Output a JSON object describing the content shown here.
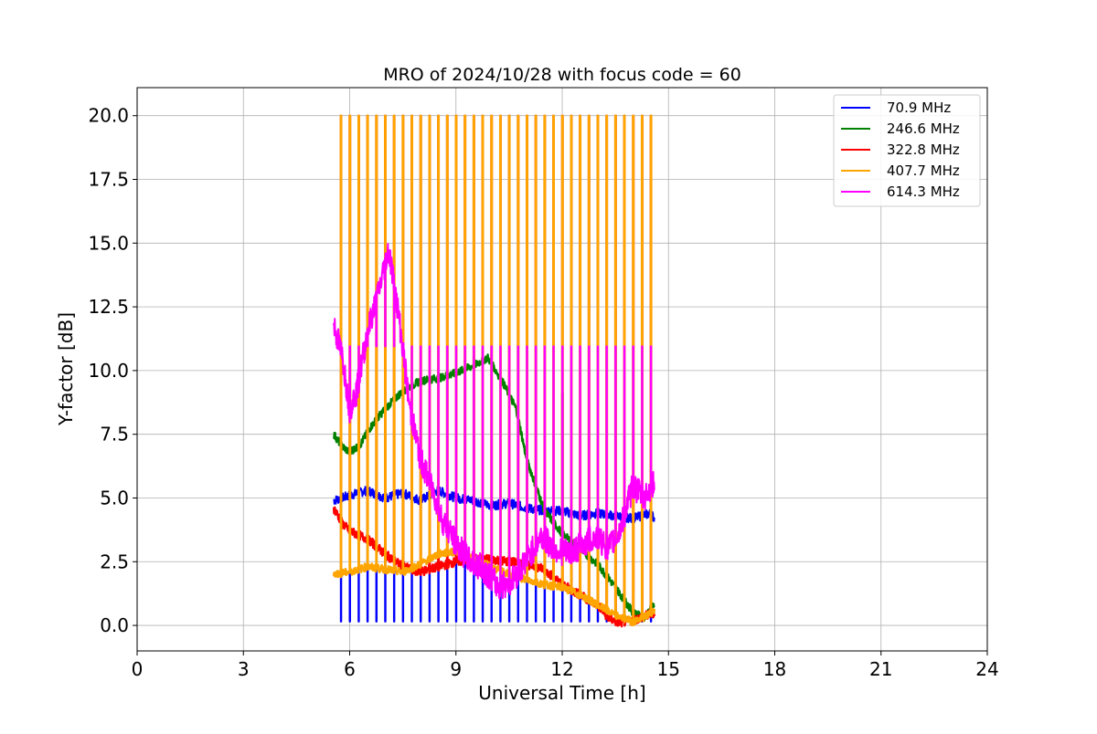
{
  "chart_data": {
    "type": "line",
    "title": "MRO of 2024/10/28 with focus code = 60",
    "xlabel": "Universal Time [h]",
    "ylabel": "Y-factor [dB]",
    "xlim": [
      0,
      24
    ],
    "ylim": [
      -1.0,
      21.1
    ],
    "xticks": [
      0,
      3,
      6,
      9,
      12,
      15,
      18,
      21,
      24
    ],
    "xtick_labels": [
      "0",
      "3",
      "6",
      "9",
      "12",
      "15",
      "18",
      "21",
      "24"
    ],
    "yticks": [
      0,
      2.5,
      5,
      7.5,
      10,
      12.5,
      15,
      17.5,
      20
    ],
    "ytick_labels": [
      "0.0",
      "2.5",
      "5.0",
      "7.5",
      "10.0",
      "12.5",
      "15.0",
      "17.5",
      "20.0"
    ],
    "grid": true,
    "legend_position": "top-right",
    "spike_start_h": 5.75,
    "spike_interval_h": 0.25,
    "spike_end_h": 14.55,
    "series": [
      {
        "name": " 70.9 MHz",
        "color": "#0000ff",
        "x": [
          5.55,
          6.0,
          6.5,
          7.0,
          7.5,
          8.0,
          8.5,
          9.0,
          9.5,
          10.0,
          10.5,
          11.0,
          11.5,
          12.0,
          12.5,
          13.0,
          13.5,
          14.0,
          14.5,
          14.6
        ],
        "y": [
          4.9,
          5.1,
          5.3,
          5.0,
          5.2,
          4.9,
          5.3,
          5.0,
          4.9,
          4.7,
          4.8,
          4.6,
          4.5,
          4.5,
          4.3,
          4.4,
          4.3,
          4.2,
          4.4,
          4.2
        ],
        "spike_to": 0.15
      },
      {
        "name": "246.6 MHz",
        "color": "#008000",
        "x": [
          5.55,
          5.8,
          6.0,
          6.3,
          6.6,
          7.0,
          7.5,
          8.0,
          8.5,
          9.0,
          9.5,
          9.9,
          10.3,
          10.7,
          11.0,
          11.5,
          12.0,
          12.5,
          13.0,
          13.5,
          14.0,
          14.3,
          14.6
        ],
        "y": [
          7.5,
          7.0,
          6.8,
          7.1,
          7.8,
          8.5,
          9.2,
          9.6,
          9.7,
          9.9,
          10.2,
          10.5,
          9.6,
          8.5,
          6.5,
          4.5,
          3.6,
          3.0,
          2.4,
          1.5,
          0.5,
          0.3,
          0.8
        ],
        "spikes": [
          [
            9.5,
            10.55
          ],
          [
            12.0,
            9.1
          ]
        ]
      },
      {
        "name": "322.8 MHz",
        "color": "#ff0000",
        "x": [
          5.55,
          5.8,
          6.0,
          6.5,
          7.0,
          7.5,
          8.0,
          8.5,
          9.0,
          9.5,
          10.0,
          10.5,
          11.0,
          11.5,
          12.0,
          12.5,
          13.0,
          13.3,
          13.6,
          14.0,
          14.3,
          14.6
        ],
        "y": [
          4.6,
          4.0,
          3.7,
          3.4,
          2.8,
          2.3,
          2.1,
          2.3,
          2.5,
          2.6,
          2.6,
          2.5,
          2.4,
          2.2,
          1.6,
          1.2,
          0.8,
          0.3,
          0.1,
          0.2,
          0.35,
          0.5
        ],
        "spike_to": 20.0
      },
      {
        "name": "407.7 MHz",
        "color": "#ffa500",
        "x": [
          5.55,
          6.0,
          6.5,
          7.0,
          7.5,
          8.0,
          8.5,
          9.0,
          9.5,
          10.0,
          10.5,
          11.0,
          11.5,
          12.0,
          12.5,
          13.0,
          13.5,
          14.0,
          14.3,
          14.6
        ],
        "y": [
          2.0,
          2.1,
          2.3,
          2.2,
          2.1,
          2.4,
          2.8,
          2.9,
          2.6,
          2.3,
          2.0,
          1.8,
          1.6,
          1.5,
          1.2,
          0.8,
          0.4,
          0.15,
          0.3,
          0.6
        ],
        "spike_to": 20.0
      },
      {
        "name": "614.3 MHz",
        "color": "#ff00ff",
        "x": [
          5.55,
          5.8,
          6.0,
          6.2,
          6.5,
          6.8,
          7.1,
          7.4,
          7.7,
          8.0,
          8.3,
          8.6,
          9.0,
          9.4,
          9.8,
          10.2,
          10.6,
          11.0,
          11.4,
          11.8,
          12.2,
          12.6,
          13.0,
          13.3,
          13.6,
          14.0,
          14.3,
          14.6
        ],
        "y": [
          11.8,
          10.5,
          8.5,
          9.2,
          11.5,
          13.0,
          14.8,
          12.0,
          8.5,
          6.5,
          5.5,
          4.2,
          3.2,
          2.5,
          2.2,
          1.5,
          1.8,
          2.6,
          3.5,
          3.0,
          2.8,
          3.2,
          3.5,
          3.0,
          3.6,
          5.5,
          5.0,
          5.6
        ],
        "spike_to": 10.95
      }
    ]
  }
}
